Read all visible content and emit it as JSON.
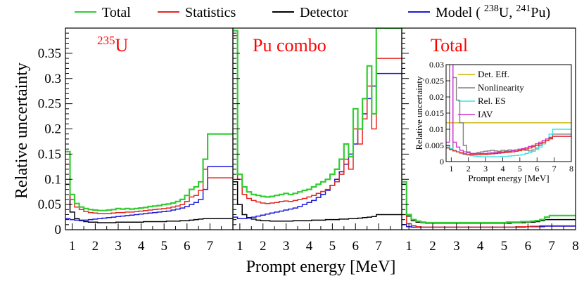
{
  "chart_data": {
    "type": "line",
    "style": "step-histogram",
    "xlabel": "Prompt energy [MeV]",
    "ylabel": "Relative uncertainty",
    "edges": [
      0.7,
      0.9,
      1.1,
      1.3,
      1.5,
      1.7,
      1.9,
      2.1,
      2.3,
      2.5,
      2.7,
      2.9,
      3.1,
      3.3,
      3.5,
      3.7,
      3.9,
      4.1,
      4.3,
      4.5,
      4.7,
      4.9,
      5.1,
      5.3,
      5.5,
      5.7,
      5.9,
      6.1,
      6.3,
      6.5,
      6.7,
      6.9,
      7.1,
      8.0
    ],
    "xlim": [
      0.7,
      8.0
    ],
    "ylim": [
      0,
      0.4
    ],
    "yticks": [
      0,
      0.05,
      0.1,
      0.15,
      0.2,
      0.25,
      0.3,
      0.35
    ],
    "ytick_labels": [
      "0",
      "0.05",
      "0.1",
      "0.15",
      "0.2",
      "0.25",
      "0.3",
      "0.35"
    ],
    "xticks": [
      1,
      2,
      3,
      4,
      5,
      6,
      7
    ],
    "xticks_last_panel": [
      1,
      2,
      3,
      4,
      5,
      6,
      7,
      8
    ],
    "legend": [
      {
        "name": "Total",
        "color": "#33cc33"
      },
      {
        "name": "Statistics",
        "color": "#e6261f"
      },
      {
        "name": "Detector",
        "color": "#000000"
      },
      {
        "name": "Model",
        "color": "#1a1adb"
      }
    ],
    "legend_model_paren": {
      "open": "( ",
      "sup1": "238",
      "mid": "U,  ",
      "sup2": "241",
      "end": "Pu)"
    },
    "panels": [
      {
        "label": "U",
        "label_sup": "235",
        "label_color": "#ff0000",
        "series": [
          {
            "name": "Total",
            "color": "#33cc33",
            "values": [
              0.155,
              0.07,
              0.052,
              0.045,
              0.042,
              0.04,
              0.039,
              0.038,
              0.038,
              0.039,
              0.04,
              0.042,
              0.041,
              0.042,
              0.041,
              0.042,
              0.043,
              0.044,
              0.046,
              0.047,
              0.048,
              0.05,
              0.051,
              0.053,
              0.056,
              0.06,
              0.068,
              0.08,
              0.085,
              0.095,
              0.14,
              0.19,
              0.19
            ]
          },
          {
            "name": "Statistics",
            "color": "#e6261f",
            "values": [
              0.13,
              0.06,
              0.045,
              0.04,
              0.036,
              0.034,
              0.033,
              0.032,
              0.032,
              0.032,
              0.033,
              0.034,
              0.034,
              0.035,
              0.035,
              0.036,
              0.037,
              0.038,
              0.039,
              0.04,
              0.041,
              0.042,
              0.043,
              0.045,
              0.047,
              0.05,
              0.056,
              0.065,
              0.068,
              0.078,
              0.12,
              0.103,
              0.103
            ]
          },
          {
            "name": "Detector",
            "color": "#000000",
            "values": [
              0.09,
              0.035,
              0.022,
              0.018,
              0.016,
              0.015,
              0.015,
              0.014,
              0.014,
              0.014,
              0.014,
              0.015,
              0.015,
              0.015,
              0.015,
              0.015,
              0.015,
              0.016,
              0.016,
              0.016,
              0.016,
              0.016,
              0.017,
              0.017,
              0.017,
              0.018,
              0.018,
              0.019,
              0.02,
              0.021,
              0.022,
              0.022,
              0.022
            ]
          },
          {
            "name": "Model",
            "color": "#1a1adb",
            "values": [
              0.022,
              0.02,
              0.019,
              0.019,
              0.019,
              0.02,
              0.021,
              0.022,
              0.023,
              0.024,
              0.025,
              0.026,
              0.027,
              0.028,
              0.029,
              0.03,
              0.031,
              0.032,
              0.033,
              0.034,
              0.035,
              0.036,
              0.037,
              0.039,
              0.041,
              0.043,
              0.046,
              0.05,
              0.054,
              0.06,
              0.08,
              0.125,
              0.125
            ]
          }
        ]
      },
      {
        "label": "Pu combo",
        "label_color": "#ff0000",
        "series": [
          {
            "name": "Total",
            "color": "#33cc33",
            "values": [
              0.395,
              0.11,
              0.085,
              0.075,
              0.07,
              0.068,
              0.066,
              0.065,
              0.066,
              0.068,
              0.07,
              0.072,
              0.07,
              0.072,
              0.075,
              0.078,
              0.08,
              0.085,
              0.09,
              0.095,
              0.1,
              0.11,
              0.12,
              0.14,
              0.17,
              0.145,
              0.24,
              0.2,
              0.26,
              0.325,
              0.23,
              0.4,
              0.4
            ]
          },
          {
            "name": "Statistics",
            "color": "#e6261f",
            "values": [
              0.385,
              0.1,
              0.07,
              0.062,
              0.058,
              0.055,
              0.053,
              0.052,
              0.053,
              0.054,
              0.056,
              0.057,
              0.056,
              0.058,
              0.06,
              0.062,
              0.065,
              0.068,
              0.072,
              0.076,
              0.08,
              0.088,
              0.095,
              0.11,
              0.14,
              0.12,
              0.2,
              0.17,
              0.22,
              0.285,
              0.2,
              0.34,
              0.34
            ]
          },
          {
            "name": "Detector",
            "color": "#000000",
            "values": [
              0.095,
              0.05,
              0.03,
              0.024,
              0.021,
              0.019,
              0.018,
              0.018,
              0.017,
              0.017,
              0.017,
              0.017,
              0.017,
              0.018,
              0.018,
              0.018,
              0.018,
              0.019,
              0.019,
              0.019,
              0.02,
              0.02,
              0.02,
              0.021,
              0.021,
              0.022,
              0.022,
              0.023,
              0.024,
              0.025,
              0.026,
              0.03,
              0.03
            ]
          },
          {
            "name": "Model",
            "color": "#1a1adb",
            "values": [
              0.025,
              0.022,
              0.022,
              0.023,
              0.025,
              0.027,
              0.029,
              0.031,
              0.033,
              0.035,
              0.037,
              0.039,
              0.041,
              0.043,
              0.046,
              0.05,
              0.054,
              0.058,
              0.064,
              0.07,
              0.078,
              0.088,
              0.1,
              0.115,
              0.13,
              0.15,
              0.17,
              0.2,
              0.23,
              0.26,
              0.285,
              0.31,
              0.31
            ]
          }
        ]
      },
      {
        "label": "Total",
        "label_color": "#ff0000",
        "series": [
          {
            "name": "Total",
            "color": "#33cc33",
            "values": [
              0.095,
              0.03,
              0.02,
              0.017,
              0.015,
              0.014,
              0.014,
              0.014,
              0.014,
              0.014,
              0.014,
              0.014,
              0.014,
              0.014,
              0.014,
              0.014,
              0.014,
              0.014,
              0.014,
              0.014,
              0.014,
              0.014,
              0.015,
              0.015,
              0.015,
              0.016,
              0.016,
              0.017,
              0.018,
              0.02,
              0.025,
              0.028,
              0.028
            ]
          },
          {
            "name": "Statistics",
            "color": "#e6261f",
            "values": [
              0.03,
              0.012,
              0.008,
              0.006,
              0.005,
              0.005,
              0.005,
              0.005,
              0.005,
              0.005,
              0.005,
              0.005,
              0.005,
              0.005,
              0.005,
              0.005,
              0.005,
              0.005,
              0.005,
              0.005,
              0.005,
              0.005,
              0.005,
              0.005,
              0.006,
              0.006,
              0.006,
              0.007,
              0.007,
              0.008,
              0.008,
              0.008,
              0.008
            ]
          },
          {
            "name": "Detector",
            "color": "#000000",
            "values": [
              0.09,
              0.027,
              0.018,
              0.015,
              0.014,
              0.013,
              0.013,
              0.013,
              0.013,
              0.013,
              0.013,
              0.013,
              0.013,
              0.013,
              0.013,
              0.013,
              0.013,
              0.013,
              0.013,
              0.013,
              0.013,
              0.013,
              0.013,
              0.014,
              0.014,
              0.014,
              0.015,
              0.015,
              0.016,
              0.018,
              0.02,
              0.02,
              0.02
            ]
          },
          {
            "name": "Model",
            "color": "#1a1adb",
            "values": [
              0.01,
              0.006,
              0.005,
              0.005,
              0.005,
              0.005,
              0.005,
              0.005,
              0.005,
              0.005,
              0.005,
              0.005,
              0.005,
              0.005,
              0.005,
              0.005,
              0.005,
              0.005,
              0.005,
              0.005,
              0.005,
              0.005,
              0.005,
              0.005,
              0.005,
              0.005,
              0.006,
              0.006,
              0.006,
              0.006,
              0.007,
              0.007,
              0.007
            ]
          }
        ]
      }
    ],
    "inset": {
      "xlabel": "Prompt energy [MeV]",
      "ylabel": "Relative uncertainty",
      "xlim": [
        0.7,
        8.0
      ],
      "ylim": [
        0,
        0.03
      ],
      "xticks": [
        1,
        2,
        3,
        4,
        5,
        6,
        7,
        8
      ],
      "yticks": [
        0,
        0.005,
        0.01,
        0.015,
        0.02,
        0.025,
        0.03
      ],
      "ytick_labels": [
        "0",
        "0.005",
        "0.01",
        "0.015",
        "0.02",
        "0.025",
        "0.03"
      ],
      "series": [
        {
          "name": "Det. Eff.",
          "color": "#c8b400",
          "values": [
            0.012,
            0.012,
            0.012,
            0.012,
            0.012,
            0.012,
            0.012,
            0.012,
            0.012,
            0.012,
            0.012,
            0.012,
            0.012,
            0.012,
            0.012,
            0.012,
            0.012,
            0.012,
            0.012,
            0.012,
            0.012,
            0.012,
            0.012,
            0.012,
            0.012,
            0.012,
            0.012,
            0.012,
            0.012,
            0.012,
            0.012,
            0.012,
            0.012
          ]
        },
        {
          "name": "Nonlinearity",
          "color": "#808080",
          "values": [
            0.005,
            0.004,
            0.026,
            0.019,
            0.012,
            0.005,
            0.003,
            0.0025,
            0.0025,
            0.0028,
            0.003,
            0.0032,
            0.0033,
            0.0035,
            0.0033,
            0.0032,
            0.0035,
            0.0034,
            0.0036,
            0.0035,
            0.0036,
            0.0038,
            0.0037,
            0.0035,
            0.0033,
            0.0036,
            0.0042,
            0.005,
            0.0055,
            0.0065,
            0.007,
            0.0085,
            0.0085
          ]
        },
        {
          "name": "Rel. ES",
          "color": "#33e6e6",
          "values": [
            0.0045,
            0.004,
            0.0035,
            0.003,
            0.0025,
            0.0022,
            0.002,
            0.0018,
            0.0017,
            0.0016,
            0.0015,
            0.0015,
            0.0015,
            0.0015,
            0.0015,
            0.0015,
            0.0016,
            0.0016,
            0.0017,
            0.0018,
            0.0019,
            0.002,
            0.0022,
            0.0025,
            0.0028,
            0.0032,
            0.0038,
            0.0045,
            0.0055,
            0.007,
            0.0085,
            0.01,
            0.01
          ]
        },
        {
          "name": "IAV",
          "color": "#cc33cc",
          "values": [
            0.006,
            0.035,
            0.006,
            0.0045,
            0.0035,
            0.003,
            0.0027,
            0.0025,
            0.0025,
            0.0025,
            0.0025,
            0.0025,
            0.0026,
            0.0027,
            0.0028,
            0.0029,
            0.003,
            0.0031,
            0.0032,
            0.0034,
            0.0036,
            0.0038,
            0.004,
            0.0043,
            0.0047,
            0.005,
            0.0055,
            0.006,
            0.0065,
            0.007,
            0.0075,
            0.0078,
            0.0078
          ]
        },
        {
          "name": "Statistics",
          "color": "#e6261f",
          "values": [
            0.0042,
            0.0037,
            0.0033,
            0.003,
            0.0027,
            0.0024,
            0.0022,
            0.0021,
            0.0021,
            0.0021,
            0.0022,
            0.0022,
            0.0023,
            0.0024,
            0.0025,
            0.0026,
            0.0027,
            0.0028,
            0.0029,
            0.003,
            0.0032,
            0.0034,
            0.0036,
            0.0039,
            0.0042,
            0.0046,
            0.005,
            0.0055,
            0.006,
            0.0065,
            0.0072,
            0.0078,
            0.0078
          ]
        }
      ]
    }
  }
}
